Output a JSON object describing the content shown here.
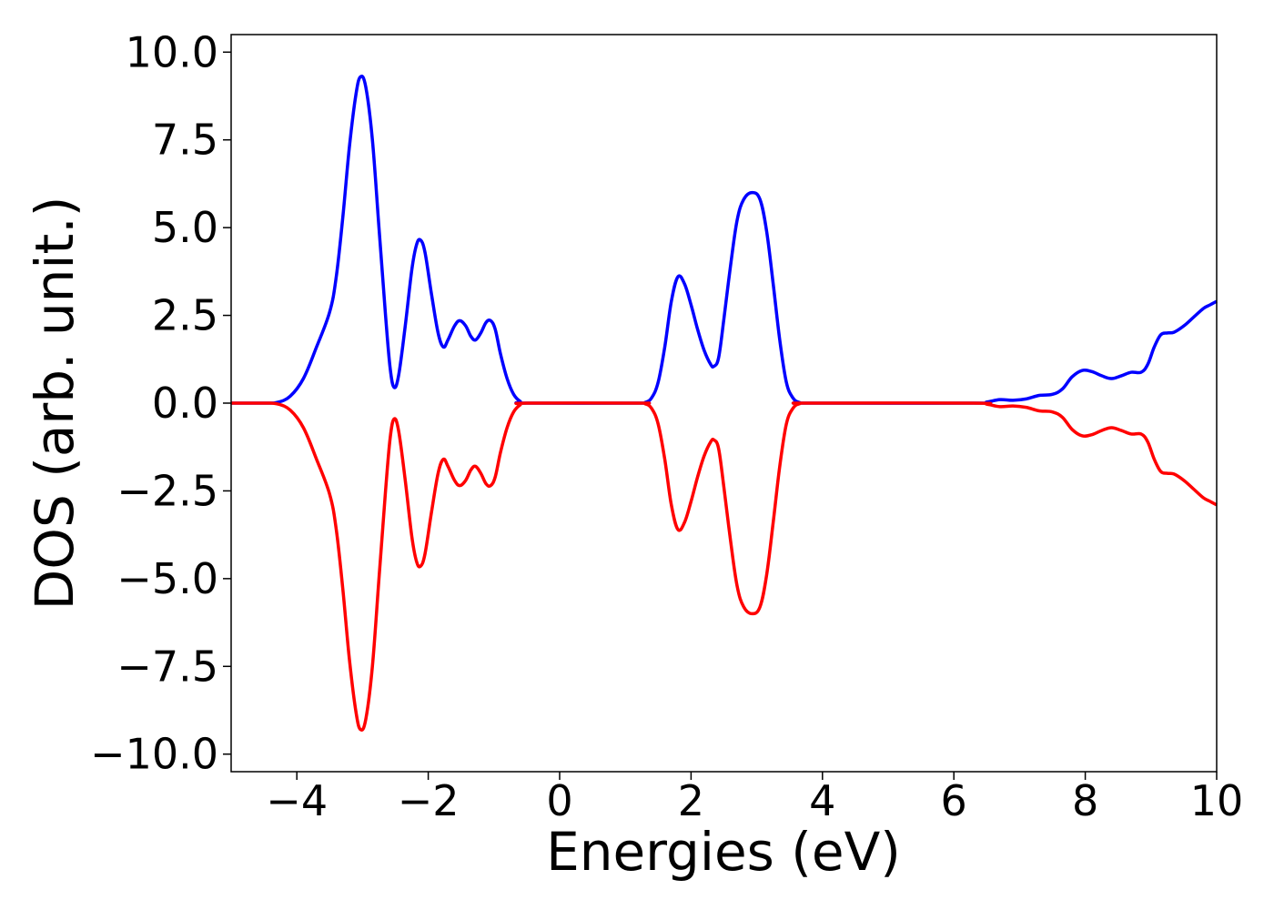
{
  "chart_data": {
    "type": "line",
    "title": "",
    "xlabel": "Energies (eV)",
    "ylabel": "DOS (arb. unit.)",
    "xlim": [
      -5,
      10
    ],
    "ylim": [
      -10.5,
      10.5
    ],
    "xticks": [
      -4,
      -2,
      0,
      2,
      4,
      6,
      8,
      10
    ],
    "xtick_labels": [
      "−4",
      "−2",
      "0",
      "2",
      "4",
      "6",
      "8",
      "10"
    ],
    "yticks": [
      10.0,
      7.5,
      5.0,
      2.5,
      0.0,
      -2.5,
      -5.0,
      -7.5,
      -10.0
    ],
    "ytick_labels": [
      "10.0",
      "7.5",
      "5.0",
      "2.5",
      "0.0",
      "−2.5",
      "−5.0",
      "−7.5",
      "−10.0"
    ],
    "grid": false,
    "series": [
      {
        "color": "#0000ff",
        "points": [
          [
            -5.0,
            0.0
          ],
          [
            -4.5,
            0.0
          ],
          [
            -4.3,
            0.02
          ],
          [
            -4.1,
            0.2
          ],
          [
            -3.9,
            0.7
          ],
          [
            -3.7,
            1.6
          ],
          [
            -3.5,
            2.6
          ],
          [
            -3.4,
            3.6
          ],
          [
            -3.3,
            5.3
          ],
          [
            -3.2,
            7.3
          ],
          [
            -3.1,
            8.8
          ],
          [
            -3.03,
            9.3
          ],
          [
            -2.95,
            9.0
          ],
          [
            -2.85,
            7.5
          ],
          [
            -2.75,
            5.0
          ],
          [
            -2.65,
            2.5
          ],
          [
            -2.58,
            1.0
          ],
          [
            -2.52,
            0.45
          ],
          [
            -2.45,
            0.8
          ],
          [
            -2.35,
            2.2
          ],
          [
            -2.25,
            3.8
          ],
          [
            -2.18,
            4.5
          ],
          [
            -2.12,
            4.65
          ],
          [
            -2.05,
            4.3
          ],
          [
            -1.95,
            3.1
          ],
          [
            -1.85,
            2.0
          ],
          [
            -1.77,
            1.6
          ],
          [
            -1.7,
            1.8
          ],
          [
            -1.6,
            2.2
          ],
          [
            -1.52,
            2.35
          ],
          [
            -1.43,
            2.2
          ],
          [
            -1.35,
            1.9
          ],
          [
            -1.28,
            1.8
          ],
          [
            -1.2,
            2.0
          ],
          [
            -1.12,
            2.3
          ],
          [
            -1.05,
            2.35
          ],
          [
            -0.98,
            2.1
          ],
          [
            -0.9,
            1.4
          ],
          [
            -0.8,
            0.7
          ],
          [
            -0.7,
            0.25
          ],
          [
            -0.6,
            0.05
          ],
          [
            -0.5,
            0.0
          ],
          [
            1.2,
            0.0
          ],
          [
            1.3,
            0.02
          ],
          [
            1.4,
            0.15
          ],
          [
            1.5,
            0.6
          ],
          [
            1.6,
            1.6
          ],
          [
            1.7,
            2.9
          ],
          [
            1.8,
            3.6
          ],
          [
            1.9,
            3.4
          ],
          [
            2.0,
            2.8
          ],
          [
            2.1,
            2.1
          ],
          [
            2.2,
            1.5
          ],
          [
            2.3,
            1.1
          ],
          [
            2.35,
            1.05
          ],
          [
            2.42,
            1.3
          ],
          [
            2.5,
            2.4
          ],
          [
            2.6,
            3.9
          ],
          [
            2.7,
            5.2
          ],
          [
            2.8,
            5.8
          ],
          [
            2.93,
            6.0
          ],
          [
            3.05,
            5.8
          ],
          [
            3.15,
            4.9
          ],
          [
            3.25,
            3.4
          ],
          [
            3.35,
            1.8
          ],
          [
            3.45,
            0.6
          ],
          [
            3.55,
            0.15
          ],
          [
            3.65,
            0.02
          ],
          [
            3.8,
            0.0
          ],
          [
            6.3,
            0.0
          ],
          [
            6.5,
            0.03
          ],
          [
            6.7,
            0.1
          ],
          [
            6.9,
            0.08
          ],
          [
            7.1,
            0.12
          ],
          [
            7.3,
            0.22
          ],
          [
            7.5,
            0.25
          ],
          [
            7.65,
            0.4
          ],
          [
            7.8,
            0.75
          ],
          [
            7.95,
            0.93
          ],
          [
            8.1,
            0.9
          ],
          [
            8.25,
            0.78
          ],
          [
            8.4,
            0.7
          ],
          [
            8.55,
            0.78
          ],
          [
            8.7,
            0.88
          ],
          [
            8.85,
            0.88
          ],
          [
            8.95,
            1.1
          ],
          [
            9.05,
            1.6
          ],
          [
            9.15,
            1.95
          ],
          [
            9.25,
            2.0
          ],
          [
            9.35,
            2.02
          ],
          [
            9.5,
            2.2
          ],
          [
            9.65,
            2.45
          ],
          [
            9.8,
            2.7
          ],
          [
            9.9,
            2.8
          ],
          [
            10.0,
            2.9
          ]
        ]
      },
      {
        "color": "#ff0000",
        "points": [
          [
            -5.0,
            0.0
          ],
          [
            -4.5,
            0.0
          ],
          [
            -4.3,
            -0.02
          ],
          [
            -4.1,
            -0.2
          ],
          [
            -3.9,
            -0.7
          ],
          [
            -3.7,
            -1.6
          ],
          [
            -3.5,
            -2.6
          ],
          [
            -3.4,
            -3.6
          ],
          [
            -3.3,
            -5.3
          ],
          [
            -3.2,
            -7.3
          ],
          [
            -3.1,
            -8.8
          ],
          [
            -3.03,
            -9.3
          ],
          [
            -2.95,
            -9.0
          ],
          [
            -2.85,
            -7.5
          ],
          [
            -2.75,
            -5.0
          ],
          [
            -2.65,
            -2.5
          ],
          [
            -2.58,
            -1.0
          ],
          [
            -2.52,
            -0.45
          ],
          [
            -2.45,
            -0.8
          ],
          [
            -2.35,
            -2.2
          ],
          [
            -2.25,
            -3.8
          ],
          [
            -2.18,
            -4.5
          ],
          [
            -2.12,
            -4.65
          ],
          [
            -2.05,
            -4.3
          ],
          [
            -1.95,
            -3.1
          ],
          [
            -1.85,
            -2.0
          ],
          [
            -1.77,
            -1.6
          ],
          [
            -1.7,
            -1.8
          ],
          [
            -1.6,
            -2.2
          ],
          [
            -1.52,
            -2.35
          ],
          [
            -1.43,
            -2.2
          ],
          [
            -1.35,
            -1.9
          ],
          [
            -1.28,
            -1.8
          ],
          [
            -1.2,
            -2.0
          ],
          [
            -1.12,
            -2.3
          ],
          [
            -1.05,
            -2.35
          ],
          [
            -0.98,
            -2.1
          ],
          [
            -0.9,
            -1.4
          ],
          [
            -0.8,
            -0.7
          ],
          [
            -0.7,
            -0.25
          ],
          [
            -0.6,
            -0.05
          ],
          [
            -0.5,
            0.0
          ],
          [
            1.2,
            0.0
          ],
          [
            1.3,
            -0.02
          ],
          [
            1.4,
            -0.15
          ],
          [
            1.5,
            -0.6
          ],
          [
            1.6,
            -1.6
          ],
          [
            1.7,
            -2.9
          ],
          [
            1.8,
            -3.6
          ],
          [
            1.9,
            -3.4
          ],
          [
            2.0,
            -2.8
          ],
          [
            2.1,
            -2.1
          ],
          [
            2.2,
            -1.5
          ],
          [
            2.3,
            -1.1
          ],
          [
            2.35,
            -1.05
          ],
          [
            2.42,
            -1.3
          ],
          [
            2.5,
            -2.4
          ],
          [
            2.6,
            -3.9
          ],
          [
            2.7,
            -5.2
          ],
          [
            2.8,
            -5.8
          ],
          [
            2.93,
            -6.0
          ],
          [
            3.05,
            -5.8
          ],
          [
            3.15,
            -4.9
          ],
          [
            3.25,
            -3.4
          ],
          [
            3.35,
            -1.8
          ],
          [
            3.45,
            -0.6
          ],
          [
            3.55,
            -0.15
          ],
          [
            3.65,
            -0.02
          ],
          [
            3.8,
            0.0
          ],
          [
            6.3,
            0.0
          ],
          [
            6.5,
            -0.03
          ],
          [
            6.7,
            -0.1
          ],
          [
            6.9,
            -0.08
          ],
          [
            7.1,
            -0.12
          ],
          [
            7.3,
            -0.22
          ],
          [
            7.5,
            -0.25
          ],
          [
            7.65,
            -0.4
          ],
          [
            7.8,
            -0.75
          ],
          [
            7.95,
            -0.93
          ],
          [
            8.1,
            -0.9
          ],
          [
            8.25,
            -0.78
          ],
          [
            8.4,
            -0.7
          ],
          [
            8.55,
            -0.78
          ],
          [
            8.7,
            -0.88
          ],
          [
            8.85,
            -0.88
          ],
          [
            8.95,
            -1.1
          ],
          [
            9.05,
            -1.6
          ],
          [
            9.15,
            -1.95
          ],
          [
            9.25,
            -2.0
          ],
          [
            9.35,
            -2.02
          ],
          [
            9.5,
            -2.2
          ],
          [
            9.65,
            -2.45
          ],
          [
            9.8,
            -2.7
          ],
          [
            9.9,
            -2.8
          ],
          [
            10.0,
            -2.9
          ]
        ]
      }
    ]
  }
}
